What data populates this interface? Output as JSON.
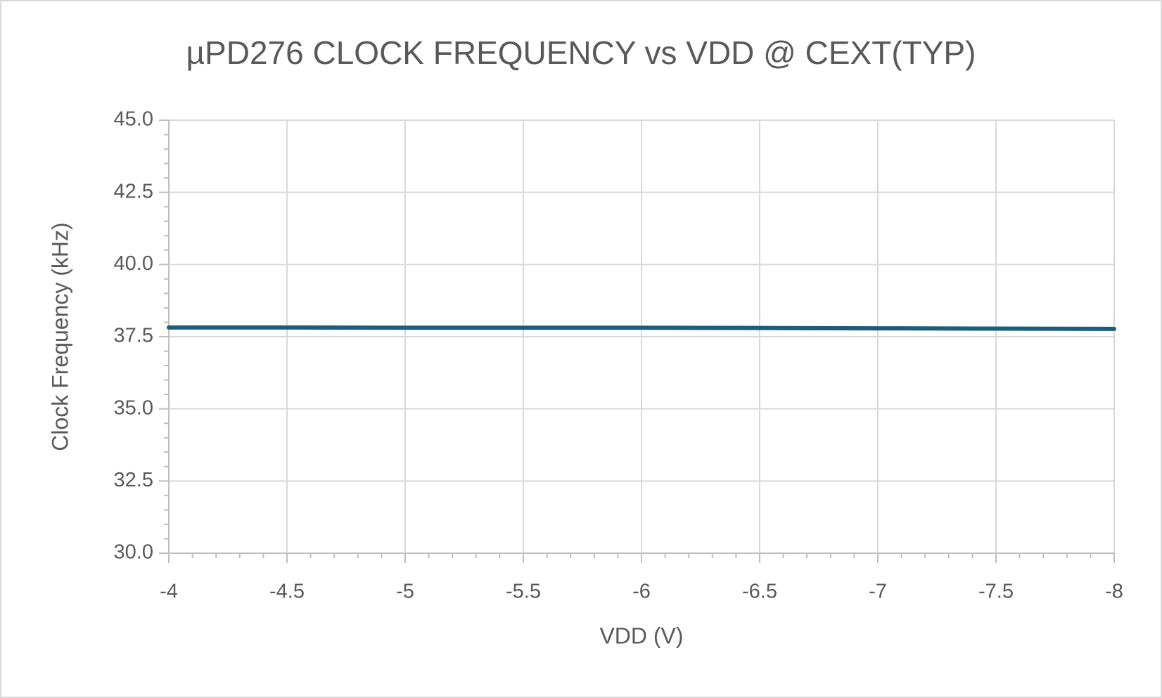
{
  "chart_data": {
    "type": "line",
    "title": "µPD276 CLOCK FREQUENCY vs VDD @ CEXT(TYP)",
    "x_label": "VDD (V)",
    "y_label": "Clock Frequency (kHz)",
    "x": [
      -4,
      -4.5,
      -5,
      -5.5,
      -6,
      -6.5,
      -7,
      -7.5,
      -8
    ],
    "series": [
      {
        "name": "Clock Frequency",
        "color": "#1b5e7b",
        "values": [
          37.82,
          37.82,
          37.81,
          37.81,
          37.81,
          37.8,
          37.79,
          37.78,
          37.77
        ]
      }
    ],
    "xlim": [
      -4,
      -8
    ],
    "xticks": [
      -4,
      -4.5,
      -5,
      -5.5,
      -6,
      -6.5,
      -7,
      -7.5,
      -8
    ],
    "ylim": [
      30,
      45
    ],
    "yticks": [
      {
        "value": 30,
        "label": "30.0"
      },
      {
        "value": 32.5,
        "label": "32.5"
      },
      {
        "value": 35,
        "label": "35.0"
      },
      {
        "value": 37.5,
        "label": "37.5"
      },
      {
        "value": 40,
        "label": "40.0"
      },
      {
        "value": 42.5,
        "label": "42.5"
      },
      {
        "value": 45,
        "label": "45.0"
      }
    ],
    "grid": true
  }
}
